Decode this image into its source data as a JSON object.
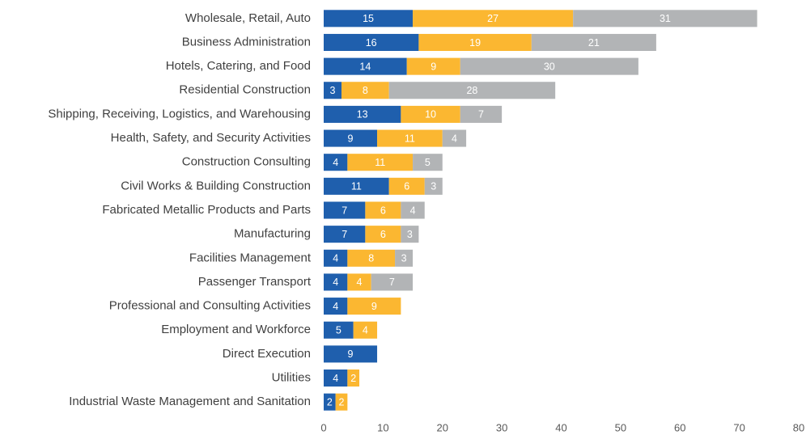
{
  "chart_data": {
    "type": "stacked-bar-horizontal",
    "categories": [
      "Wholesale, Retail, Auto",
      "Business Administration",
      "Hotels, Catering, and Food",
      "Residential Construction",
      "Shipping, Receiving, Logistics, and Warehousing",
      "Health, Safety, and Security Activities",
      "Construction Consulting",
      "Civil Works & Building Construction",
      "Fabricated Metallic Products and Parts",
      "Manufacturing",
      "Facilities Management",
      "Passenger Transport",
      "Professional and Consulting Activities",
      "Employment and Workforce",
      "Direct Execution",
      "Utilities",
      "Industrial Waste Management and Sanitation"
    ],
    "series": [
      {
        "color": "#1f5fad",
        "values": [
          15,
          16,
          14,
          3,
          13,
          9,
          4,
          11,
          7,
          7,
          4,
          4,
          4,
          5,
          9,
          4,
          2
        ]
      },
      {
        "color": "#fbb731",
        "values": [
          27,
          19,
          9,
          8,
          10,
          11,
          11,
          6,
          6,
          6,
          8,
          4,
          9,
          4,
          null,
          2,
          2
        ]
      },
      {
        "color": "#b2b4b6",
        "values": [
          31,
          21,
          30,
          28,
          7,
          4,
          5,
          3,
          4,
          3,
          3,
          7,
          null,
          null,
          null,
          null,
          null
        ]
      }
    ],
    "xlim": [
      0,
      80
    ],
    "xticks": [
      0,
      10,
      20,
      30,
      40,
      50,
      60,
      70,
      80
    ],
    "grid": false
  }
}
